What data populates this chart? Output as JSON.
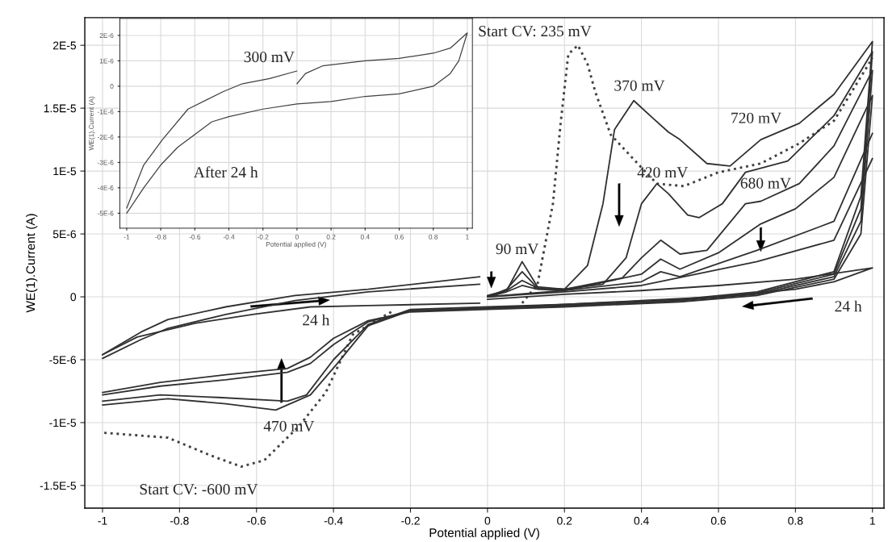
{
  "chart_data": [
    {
      "type": "line",
      "xlabel": "Potential applied (V)",
      "ylabel": "WE(1).Current (A)",
      "xlim": [
        -1.046,
        1.03
      ],
      "ylim": [
        -1.68e-05,
        2.22e-05
      ],
      "xticks": [
        -1,
        -0.8,
        -0.6,
        -0.4,
        -0.2,
        0,
        0.2,
        0.4,
        0.6,
        0.8,
        1
      ],
      "yticks": [
        {
          "value": -1.5e-05,
          "label": "-1.5E-5"
        },
        {
          "value": -1e-05,
          "label": "-1E-5"
        },
        {
          "value": -5e-06,
          "label": "-5E-6"
        },
        {
          "value": 0,
          "label": "0"
        },
        {
          "value": 5e-06,
          "label": "5E-6"
        },
        {
          "value": 1e-05,
          "label": "1E-5"
        },
        {
          "value": 1.5e-05,
          "label": "1.5E-5"
        },
        {
          "value": 2e-05,
          "label": "2E-5"
        }
      ],
      "grid": true,
      "line_style": "solid",
      "series": [
        {
          "color": "#404040",
          "line_style": "dotted",
          "x": [
            0.09,
            0.13,
            0.17,
            0.19,
            0.21,
            0.235,
            0.26,
            0.28,
            0.32,
            0.39,
            0.44,
            0.51,
            0.6,
            0.71,
            0.81,
            0.9,
            0.95,
            1.0
          ],
          "values": [
            -5e-07,
            1e-06,
            7.4e-06,
            1.38e-05,
            1.93e-05,
            2e-05,
            1.85e-05,
            1.63e-05,
            1.29e-05,
            1.06e-05,
            9e-06,
            8.8e-06,
            9.9e-06,
            1.06e-05,
            1.22e-05,
            1.4e-05,
            1.65e-05,
            1.9e-05
          ]
        },
        {
          "color": "#404040",
          "line_style": "dotted",
          "x": [
            -0.25,
            -0.35,
            -0.42,
            -0.49,
            -0.58,
            -0.64,
            -0.72,
            -0.83,
            -1.0
          ],
          "values": [
            -1.2e-06,
            -3e-06,
            -7.6e-06,
            -1.03e-05,
            -1.3e-05,
            -1.35e-05,
            -1.26e-05,
            -1.12e-05,
            -1.08e-05
          ]
        },
        {
          "color": "#303030",
          "x": [
            -1.0,
            -0.9,
            -0.83,
            -0.68,
            -0.5,
            -0.31,
            -0.02
          ],
          "values": [
            -4.6e-06,
            -2.8e-06,
            -1.8e-06,
            -8e-07,
            1e-07,
            6e-07,
            1.6e-06
          ]
        },
        {
          "color": "#303030",
          "x": [
            -1.0,
            -0.9,
            -0.83,
            -0.68,
            -0.5,
            -0.31,
            -0.02
          ],
          "values": [
            -4.9e-06,
            -3.4e-06,
            -2.5e-06,
            -1.4e-06,
            -3e-07,
            4e-07,
            1e-06
          ]
        },
        {
          "color": "#303030",
          "x": [
            0.0,
            0.05,
            0.09,
            0.13,
            0.2,
            0.26,
            0.3,
            0.33,
            0.38,
            0.43,
            0.47,
            0.5,
            0.57,
            0.63,
            0.71,
            0.81,
            0.9,
            1.0,
            0.97,
            0.9,
            0.7,
            0.5,
            0.2,
            0.0,
            -0.2,
            -0.31,
            -0.4,
            -0.47,
            -0.52,
            -0.7,
            -0.85,
            -1.0
          ],
          "values": [
            1e-07,
            5e-07,
            2.8e-06,
            8e-07,
            6e-07,
            2.5e-06,
            7.4e-06,
            1.33e-05,
            1.56e-05,
            1.42e-05,
            1.31e-05,
            1.25e-05,
            1.06e-05,
            1.04e-05,
            1.25e-05,
            1.38e-05,
            1.61e-05,
            2.03e-05,
            8e-06,
            2e-06,
            4e-07,
            -2e-07,
            -6e-07,
            -8e-07,
            -1e-06,
            -2.2e-06,
            -5e-06,
            -7.8e-06,
            -8.3e-06,
            -8e-06,
            -7.8e-06,
            -8.3e-06
          ]
        },
        {
          "color": "#303030",
          "x": [
            0.0,
            0.05,
            0.09,
            0.13,
            0.2,
            0.3,
            0.36,
            0.4,
            0.44,
            0.47,
            0.52,
            0.55,
            0.61,
            0.67,
            0.78,
            0.9,
            1.0,
            0.97,
            0.9,
            0.7,
            0.5,
            0.2,
            0.0,
            -0.2,
            -0.31,
            -0.39,
            -0.46,
            -0.55,
            -0.68,
            -0.83,
            -1.0
          ],
          "values": [
            0.0,
            6e-07,
            2e-06,
            7e-07,
            6e-07,
            1e-06,
            3.1e-06,
            7.4e-06,
            9e-06,
            8.2e-06,
            6.5e-06,
            6.3e-06,
            7.4e-06,
            9.9e-06,
            1.08e-05,
            1.44e-05,
            1.95e-05,
            7e-06,
            1.8e-06,
            3e-07,
            -3e-07,
            -7e-07,
            -9e-07,
            -1.1e-06,
            -2.3e-06,
            -5.3e-06,
            -7.8e-06,
            -9e-06,
            -8.5e-06,
            -8.1e-06,
            -8.6e-06
          ]
        },
        {
          "color": "#303030",
          "x": [
            0.0,
            0.05,
            0.09,
            0.13,
            0.2,
            0.35,
            0.4,
            0.45,
            0.5,
            0.57,
            0.67,
            0.71,
            0.81,
            0.9,
            1.0,
            0.97,
            0.9,
            0.7,
            0.5,
            0.2,
            0.0,
            -0.2,
            -0.31,
            -0.4,
            -0.46,
            -0.52,
            -0.68,
            -0.85,
            -1.0
          ],
          "values": [
            0.0,
            5e-07,
            1.3e-06,
            7e-07,
            6e-07,
            1.5e-06,
            3.1e-06,
            4.5e-06,
            3.4e-06,
            3.7e-06,
            7.4e-06,
            7.6e-06,
            9e-06,
            1.2e-05,
            1.8e-05,
            6e-06,
            1.6e-06,
            2e-07,
            -3e-07,
            -7e-07,
            -9e-07,
            -1.1e-06,
            -2e-06,
            -3.8e-06,
            -5.3e-06,
            -6e-06,
            -6.6e-06,
            -7.1e-06,
            -7.8e-06
          ]
        },
        {
          "color": "#303030",
          "x": [
            0.0,
            0.05,
            0.09,
            0.13,
            0.2,
            0.4,
            0.45,
            0.5,
            0.6,
            0.71,
            0.8,
            0.9,
            1.0,
            0.97,
            0.9,
            0.7,
            0.5,
            0.2,
            0.0,
            -0.2,
            -0.31,
            -0.4,
            -0.46,
            -0.52,
            -0.68,
            -0.85,
            -1.0
          ],
          "values": [
            0.0,
            4e-07,
            9e-07,
            6e-07,
            5e-07,
            1.8e-06,
            3e-06,
            2.2e-06,
            3.5e-06,
            5.8e-06,
            7e-06,
            9.5e-06,
            1.6e-05,
            5e-06,
            1.4e-06,
            1e-07,
            -4e-07,
            -8e-07,
            -1e-06,
            -1.2e-06,
            -1.9e-06,
            -3.3e-06,
            -4.8e-06,
            -5.7e-06,
            -6.2e-06,
            -6.8e-06,
            -7.6e-06
          ]
        },
        {
          "color": "#303030",
          "x": [
            0.0,
            0.2,
            0.4,
            0.45,
            0.5,
            0.7,
            0.9,
            1.0
          ],
          "values": [
            0.0,
            5e-07,
            1.2e-06,
            2e-06,
            1.6e-06,
            3.7e-06,
            6e-06,
            1.3e-05
          ]
        },
        {
          "color": "#303030",
          "x": [
            0.0,
            0.2,
            0.4,
            0.7,
            0.9,
            1.0
          ],
          "values": [
            0.0,
            4e-07,
            9e-07,
            2.8e-06,
            4.5e-06,
            1.1e-05
          ]
        },
        {
          "color": "#303030",
          "x": [
            -1.0,
            -0.91,
            -0.76,
            -0.61,
            -0.46,
            -0.31,
            -0.02
          ],
          "values": [
            -4.6e-06,
            -3.2e-06,
            -2.1e-06,
            -1.4e-06,
            -8e-07,
            -7e-07,
            -5e-07
          ]
        },
        {
          "color": "#303030",
          "x": [
            0.0,
            0.2,
            0.4,
            0.6,
            0.8,
            1.0,
            0.9,
            0.8,
            0.6,
            0.4,
            0.2,
            0.0
          ],
          "values": [
            -2e-07,
            2e-07,
            5e-07,
            9e-07,
            1.4e-06,
            2.3e-06,
            1.2e-06,
            6e-07,
            0.0,
            -3e-07,
            -6e-07,
            -9e-07
          ]
        }
      ],
      "annotations": [
        "Start CV: 235 mV",
        "370 mV",
        "720 mV",
        "420 mV",
        "680 mV",
        "90 mV",
        "24 h",
        "24 h",
        {
          "text": "470 mV",
          "x": -0.55,
          "y": -9e-06
        },
        "Start CV: -600 mV"
      ]
    },
    {
      "type": "line",
      "xlabel": "Potential applied (V)",
      "ylabel": "WE(1).Current (A)",
      "xlim": [
        -1.04,
        1.03
      ],
      "ylim": [
        -5.59e-06,
        2.67e-06
      ],
      "xticks": [
        -1,
        -0.8,
        -0.6,
        -0.4,
        -0.2,
        0,
        0.2,
        0.4,
        0.6,
        0.8,
        1
      ],
      "yticks": [
        {
          "value": -5e-06,
          "label": "-5E-6"
        },
        {
          "value": -4e-06,
          "label": "-4E-6"
        },
        {
          "value": -3e-06,
          "label": "-3E-6"
        },
        {
          "value": -2e-06,
          "label": "-2E-6"
        },
        {
          "value": -1e-06,
          "label": "-1E-6"
        },
        {
          "value": 0,
          "label": "0"
        },
        {
          "value": 1e-06,
          "label": "1E-6"
        },
        {
          "value": 2e-06,
          "label": "2E-6"
        }
      ],
      "grid": true,
      "line_style": "solid",
      "series": [
        {
          "color": "#404040",
          "x": [
            -1.0,
            -0.9,
            -0.79,
            -0.64,
            -0.43,
            -0.32,
            -0.16,
            0.0
          ],
          "values": [
            -4.8e-06,
            -3.1e-06,
            -2.1e-06,
            -9e-07,
            -2e-07,
            1e-07,
            3e-07,
            6e-07
          ]
        },
        {
          "color": "#404040",
          "x": [
            0.0,
            0.05,
            0.15,
            0.27,
            0.4,
            0.6,
            0.8,
            0.9,
            1.0,
            0.95,
            0.9,
            0.8,
            0.6,
            0.4,
            0.2,
            0.0,
            -0.2,
            -0.4,
            -0.5,
            -0.6,
            -0.7,
            -0.8,
            -0.9,
            -1.0
          ],
          "values": [
            1e-07,
            5e-07,
            8e-07,
            9e-07,
            1e-06,
            1.1e-06,
            1.3e-06,
            1.5e-06,
            2.1e-06,
            1e-06,
            5e-07,
            0.0,
            -3e-07,
            -4e-07,
            -6e-07,
            -7e-07,
            -9e-07,
            -1.2e-06,
            -1.4e-06,
            -1.9e-06,
            -2.4e-06,
            -3.1e-06,
            -4e-06,
            -5e-06
          ]
        }
      ],
      "annotations": [
        "300 mV",
        "After 24 h"
      ]
    }
  ]
}
